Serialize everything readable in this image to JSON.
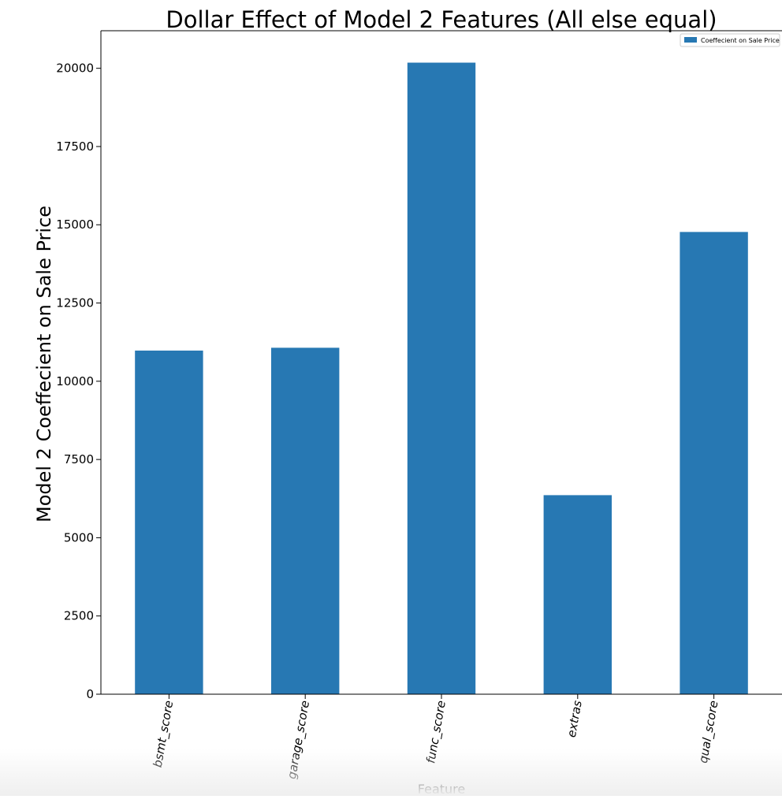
{
  "chart_data": {
    "type": "bar",
    "title": "Dollar Effect of Model 2 Features (All else equal)",
    "xlabel": "Feature",
    "ylabel": "Model 2 Coeffecient on Sale Price",
    "categories": [
      "bsmt_score",
      "garage_score",
      "func_score",
      "extras",
      "qual_score"
    ],
    "series": [
      {
        "name": "Coeffecient on Sale Price",
        "values": [
          10980,
          11070,
          20180,
          6360,
          14770
        ]
      }
    ],
    "ylim": [
      0,
      21200
    ],
    "yticks": [
      0,
      2500,
      5000,
      7500,
      10000,
      12500,
      15000,
      17500,
      20000
    ],
    "grid": false,
    "legend_position": "top-right",
    "bar_color": "#2778b3"
  }
}
